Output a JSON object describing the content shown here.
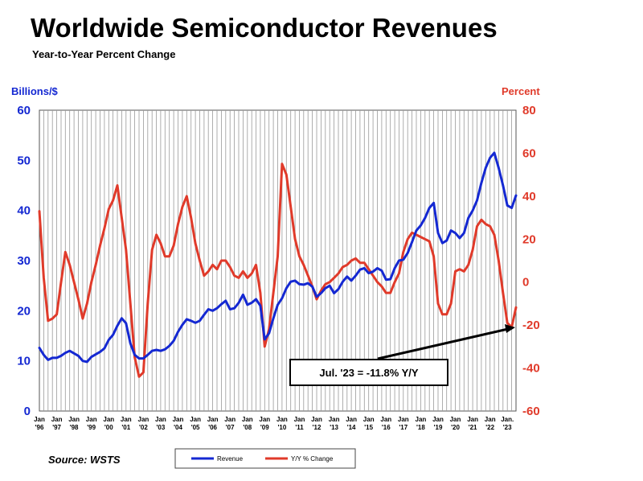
{
  "chart_data": {
    "type": "line",
    "title": "Worldwide Semiconductor Revenues",
    "subtitle": "Year-to-Year Percent Change",
    "ylabel_left": "Billions/$",
    "ylabel_right": "Percent",
    "ylim_left": [
      0,
      60
    ],
    "ylim_right": [
      -60,
      80
    ],
    "yticks_left": [
      "0",
      "10",
      "20",
      "30",
      "40",
      "50",
      "60"
    ],
    "yticks_right": [
      "-60",
      "-40",
      "-20",
      "0",
      "20",
      "40",
      "60",
      "80"
    ],
    "x_ticks": [
      {
        "month": "Jan",
        "year": "'96"
      },
      {
        "month": "Jan",
        "year": "'97"
      },
      {
        "month": "Jan",
        "year": "'98"
      },
      {
        "month": "Jan",
        "year": "'99"
      },
      {
        "month": "Jan",
        "year": "'00"
      },
      {
        "month": "Jan",
        "year": "'01"
      },
      {
        "month": "Jan",
        "year": "'02"
      },
      {
        "month": "Jan",
        "year": "'03"
      },
      {
        "month": "Jan",
        "year": "'04"
      },
      {
        "month": "Jan",
        "year": "'05"
      },
      {
        "month": "Jan",
        "year": "'06"
      },
      {
        "month": "Jan",
        "year": "'07"
      },
      {
        "month": "Jan",
        "year": "'08"
      },
      {
        "month": "Jan",
        "year": "'09"
      },
      {
        "month": "Jan",
        "year": "'10"
      },
      {
        "month": "Jan",
        "year": "'11"
      },
      {
        "month": "Jan",
        "year": "'12"
      },
      {
        "month": "Jan",
        "year": "'13"
      },
      {
        "month": "Jan",
        "year": "'14"
      },
      {
        "month": "Jan",
        "year": "'15"
      },
      {
        "month": "Jan",
        "year": "'16"
      },
      {
        "month": "Jan",
        "year": "'17"
      },
      {
        "month": "Jan",
        "year": "'18"
      },
      {
        "month": "Jan",
        "year": "'19"
      },
      {
        "month": "Jan",
        "year": "'20"
      },
      {
        "month": "Jan",
        "year": "'21"
      },
      {
        "month": "Jan",
        "year": "'22"
      },
      {
        "month": "Jan.",
        "year": "'23"
      }
    ],
    "x_range": [
      "1996-01",
      "2023-07"
    ],
    "grid": "vertical lines at every quarter",
    "legend_position": "bottom-center",
    "series": [
      {
        "name": "Revenue",
        "axis": "left",
        "color": "#1428d2",
        "points": [
          [
            "1996-01",
            12.6
          ],
          [
            "1996-04",
            11.2
          ],
          [
            "1996-07",
            10.2
          ],
          [
            "1996-10",
            10.6
          ],
          [
            "1997-01",
            10.6
          ],
          [
            "1997-04",
            11.0
          ],
          [
            "1997-07",
            11.6
          ],
          [
            "1997-10",
            12.0
          ],
          [
            "1998-01",
            11.5
          ],
          [
            "1998-04",
            11.0
          ],
          [
            "1998-07",
            10.0
          ],
          [
            "1998-10",
            9.8
          ],
          [
            "1999-01",
            10.8
          ],
          [
            "1999-04",
            11.3
          ],
          [
            "1999-07",
            11.8
          ],
          [
            "1999-10",
            12.5
          ],
          [
            "2000-01",
            14.2
          ],
          [
            "2000-04",
            15.2
          ],
          [
            "2000-07",
            17.0
          ],
          [
            "2000-10",
            18.5
          ],
          [
            "2001-01",
            17.5
          ],
          [
            "2001-04",
            13.5
          ],
          [
            "2001-07",
            11.2
          ],
          [
            "2001-10",
            10.5
          ],
          [
            "2002-01",
            10.5
          ],
          [
            "2002-04",
            11.2
          ],
          [
            "2002-07",
            12.0
          ],
          [
            "2002-10",
            12.2
          ],
          [
            "2003-01",
            12.0
          ],
          [
            "2003-04",
            12.3
          ],
          [
            "2003-07",
            13.0
          ],
          [
            "2003-10",
            14.0
          ],
          [
            "2004-01",
            15.8
          ],
          [
            "2004-04",
            17.2
          ],
          [
            "2004-07",
            18.3
          ],
          [
            "2004-10",
            18.0
          ],
          [
            "2005-01",
            17.6
          ],
          [
            "2005-04",
            18.0
          ],
          [
            "2005-07",
            19.2
          ],
          [
            "2005-10",
            20.3
          ],
          [
            "2006-01",
            20.0
          ],
          [
            "2006-04",
            20.5
          ],
          [
            "2006-07",
            21.3
          ],
          [
            "2006-10",
            22.0
          ],
          [
            "2007-01",
            20.3
          ],
          [
            "2007-04",
            20.5
          ],
          [
            "2007-07",
            21.6
          ],
          [
            "2007-10",
            23.2
          ],
          [
            "2008-01",
            21.2
          ],
          [
            "2008-04",
            21.6
          ],
          [
            "2008-07",
            22.3
          ],
          [
            "2008-10",
            21.0
          ],
          [
            "2009-01",
            14.3
          ],
          [
            "2009-04",
            15.5
          ],
          [
            "2009-07",
            18.5
          ],
          [
            "2009-10",
            21.2
          ],
          [
            "2010-01",
            22.5
          ],
          [
            "2010-04",
            24.5
          ],
          [
            "2010-07",
            25.8
          ],
          [
            "2010-10",
            26.0
          ],
          [
            "2011-01",
            25.3
          ],
          [
            "2011-04",
            25.2
          ],
          [
            "2011-07",
            25.5
          ],
          [
            "2011-10",
            24.8
          ],
          [
            "2012-01",
            22.8
          ],
          [
            "2012-04",
            23.5
          ],
          [
            "2012-07",
            24.5
          ],
          [
            "2012-10",
            25.0
          ],
          [
            "2013-01",
            23.5
          ],
          [
            "2013-04",
            24.3
          ],
          [
            "2013-07",
            25.8
          ],
          [
            "2013-10",
            26.8
          ],
          [
            "2014-01",
            26.0
          ],
          [
            "2014-04",
            27.0
          ],
          [
            "2014-07",
            28.2
          ],
          [
            "2014-10",
            28.5
          ],
          [
            "2015-01",
            27.5
          ],
          [
            "2015-04",
            27.8
          ],
          [
            "2015-07",
            28.5
          ],
          [
            "2015-10",
            28.0
          ],
          [
            "2016-01",
            26.2
          ],
          [
            "2016-04",
            26.3
          ],
          [
            "2016-07",
            28.5
          ],
          [
            "2016-10",
            30.0
          ],
          [
            "2017-01",
            30.2
          ],
          [
            "2017-04",
            31.5
          ],
          [
            "2017-07",
            33.7
          ],
          [
            "2017-10",
            36.0
          ],
          [
            "2018-01",
            37.0
          ],
          [
            "2018-04",
            38.5
          ],
          [
            "2018-07",
            40.5
          ],
          [
            "2018-10",
            41.5
          ],
          [
            "2019-01",
            35.5
          ],
          [
            "2019-04",
            33.5
          ],
          [
            "2019-07",
            34.0
          ],
          [
            "2019-10",
            36.0
          ],
          [
            "2020-01",
            35.5
          ],
          [
            "2020-04",
            34.5
          ],
          [
            "2020-07",
            35.5
          ],
          [
            "2020-10",
            38.5
          ],
          [
            "2021-01",
            40.0
          ],
          [
            "2021-04",
            42.0
          ],
          [
            "2021-07",
            45.5
          ],
          [
            "2021-10",
            48.5
          ],
          [
            "2022-01",
            50.5
          ],
          [
            "2022-04",
            51.5
          ],
          [
            "2022-07",
            48.5
          ],
          [
            "2022-10",
            45.0
          ],
          [
            "2023-01",
            41.0
          ],
          [
            "2023-04",
            40.5
          ],
          [
            "2023-07",
            43.0
          ]
        ]
      },
      {
        "name": "Y/Y % Change",
        "axis": "right",
        "color": "#e03a2a",
        "points": [
          [
            "1996-01",
            33
          ],
          [
            "1996-04",
            2
          ],
          [
            "1996-07",
            -18
          ],
          [
            "1996-10",
            -17
          ],
          [
            "1997-01",
            -15
          ],
          [
            "1997-04",
            0
          ],
          [
            "1997-07",
            14
          ],
          [
            "1997-10",
            8
          ],
          [
            "1998-01",
            0
          ],
          [
            "1998-04",
            -8
          ],
          [
            "1998-07",
            -17
          ],
          [
            "1998-10",
            -10
          ],
          [
            "1999-01",
            0
          ],
          [
            "1999-04",
            8
          ],
          [
            "1999-07",
            17
          ],
          [
            "1999-10",
            25
          ],
          [
            "2000-01",
            34
          ],
          [
            "2000-04",
            38
          ],
          [
            "2000-07",
            45
          ],
          [
            "2000-10",
            30
          ],
          [
            "2001-01",
            15
          ],
          [
            "2001-04",
            -10
          ],
          [
            "2001-07",
            -35
          ],
          [
            "2001-10",
            -44
          ],
          [
            "2002-01",
            -42
          ],
          [
            "2002-04",
            -10
          ],
          [
            "2002-07",
            15
          ],
          [
            "2002-10",
            22
          ],
          [
            "2003-01",
            18
          ],
          [
            "2003-04",
            12
          ],
          [
            "2003-07",
            12
          ],
          [
            "2003-10",
            17
          ],
          [
            "2004-01",
            27
          ],
          [
            "2004-04",
            35
          ],
          [
            "2004-07",
            40
          ],
          [
            "2004-10",
            30
          ],
          [
            "2005-01",
            18
          ],
          [
            "2005-04",
            10
          ],
          [
            "2005-07",
            3
          ],
          [
            "2005-10",
            5
          ],
          [
            "2006-01",
            8
          ],
          [
            "2006-04",
            6
          ],
          [
            "2006-07",
            10
          ],
          [
            "2006-10",
            10
          ],
          [
            "2007-01",
            7
          ],
          [
            "2007-04",
            3
          ],
          [
            "2007-07",
            2
          ],
          [
            "2007-10",
            5
          ],
          [
            "2008-01",
            2
          ],
          [
            "2008-04",
            4
          ],
          [
            "2008-07",
            8
          ],
          [
            "2008-10",
            -5
          ],
          [
            "2009-01",
            -30
          ],
          [
            "2009-04",
            -22
          ],
          [
            "2009-07",
            -5
          ],
          [
            "2009-10",
            12
          ],
          [
            "2010-01",
            55
          ],
          [
            "2010-04",
            50
          ],
          [
            "2010-07",
            35
          ],
          [
            "2010-10",
            20
          ],
          [
            "2011-01",
            12
          ],
          [
            "2011-04",
            8
          ],
          [
            "2011-07",
            3
          ],
          [
            "2011-10",
            -2
          ],
          [
            "2012-01",
            -8
          ],
          [
            "2012-04",
            -4
          ],
          [
            "2012-07",
            -1
          ],
          [
            "2012-10",
            0
          ],
          [
            "2013-01",
            2
          ],
          [
            "2013-04",
            4
          ],
          [
            "2013-07",
            7
          ],
          [
            "2013-10",
            8
          ],
          [
            "2014-01",
            10
          ],
          [
            "2014-04",
            11
          ],
          [
            "2014-07",
            9
          ],
          [
            "2014-10",
            9
          ],
          [
            "2015-01",
            6
          ],
          [
            "2015-04",
            3
          ],
          [
            "2015-07",
            0
          ],
          [
            "2015-10",
            -2
          ],
          [
            "2016-01",
            -5
          ],
          [
            "2016-04",
            -5
          ],
          [
            "2016-07",
            0
          ],
          [
            "2016-10",
            4
          ],
          [
            "2017-01",
            14
          ],
          [
            "2017-04",
            20
          ],
          [
            "2017-07",
            23
          ],
          [
            "2017-10",
            22
          ],
          [
            "2018-01",
            21
          ],
          [
            "2018-04",
            20
          ],
          [
            "2018-07",
            19
          ],
          [
            "2018-10",
            12
          ],
          [
            "2019-01",
            -10
          ],
          [
            "2019-04",
            -15
          ],
          [
            "2019-07",
            -15
          ],
          [
            "2019-10",
            -10
          ],
          [
            "2020-01",
            5
          ],
          [
            "2020-04",
            6
          ],
          [
            "2020-07",
            5
          ],
          [
            "2020-10",
            8
          ],
          [
            "2021-01",
            15
          ],
          [
            "2021-04",
            26
          ],
          [
            "2021-07",
            29
          ],
          [
            "2021-10",
            27
          ],
          [
            "2022-01",
            26
          ],
          [
            "2022-04",
            22
          ],
          [
            "2022-07",
            10
          ],
          [
            "2022-10",
            -5
          ],
          [
            "2023-01",
            -19
          ],
          [
            "2023-04",
            -21
          ],
          [
            "2023-07",
            -11.8
          ]
        ]
      }
    ],
    "annotation": "Jul. '23 = -11.8% Y/Y",
    "source": "Source: WSTS"
  }
}
